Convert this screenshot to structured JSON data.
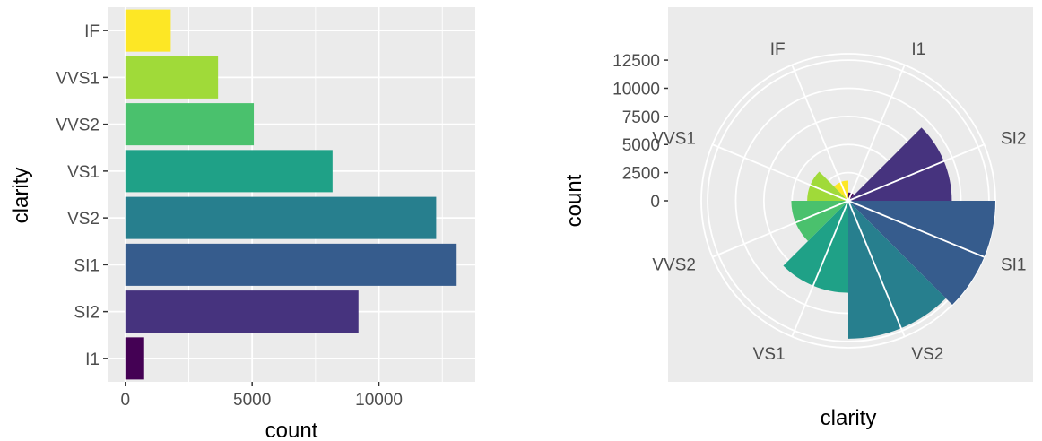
{
  "chart_data": [
    {
      "type": "bar",
      "orientation": "horizontal",
      "xlabel": "count",
      "ylabel": "clarity",
      "categories": [
        "I1",
        "SI2",
        "SI1",
        "VS2",
        "VS1",
        "VVS2",
        "VVS1",
        "IF"
      ],
      "values": [
        741,
        9194,
        13065,
        12258,
        8171,
        5066,
        3655,
        1790
      ],
      "colors": [
        "#440154",
        "#46337e",
        "#365c8d",
        "#277f8e",
        "#1fa187",
        "#4ac16d",
        "#a0da39",
        "#fde725"
      ],
      "xticks": [
        0,
        5000,
        10000
      ],
      "xtick_labels": [
        "0",
        "5000",
        "10000"
      ],
      "xlim": [
        -700,
        13800
      ],
      "grid": true,
      "panel_background": "#ebebeb",
      "legend": "none"
    },
    {
      "type": "bar",
      "coord": "polar",
      "xlabel": "clarity",
      "ylabel": "count",
      "categories": [
        "I1",
        "SI2",
        "SI1",
        "VS2",
        "VS1",
        "VVS2",
        "VVS1",
        "IF"
      ],
      "values": [
        741,
        9194,
        13065,
        12258,
        8171,
        5066,
        3655,
        1790
      ],
      "colors": [
        "#440154",
        "#46337e",
        "#365c8d",
        "#277f8e",
        "#1fa187",
        "#4ac16d",
        "#a0da39",
        "#fde725"
      ],
      "rticks": [
        0,
        2500,
        5000,
        7500,
        10000,
        12500
      ],
      "rtick_labels": [
        "0",
        "2500",
        "5000",
        "7500",
        "10000",
        "12500"
      ],
      "rlim": [
        0,
        13065
      ],
      "grid": true,
      "panel_background": "#ebebeb",
      "legend": "none"
    }
  ]
}
